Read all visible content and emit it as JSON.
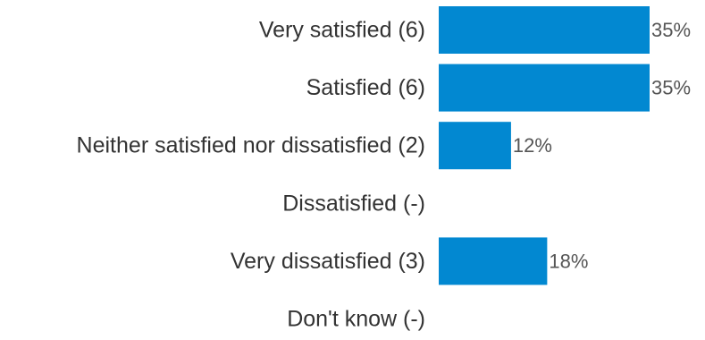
{
  "chart_data": {
    "type": "bar",
    "orientation": "horizontal",
    "categories": [
      "Very satisfied (6)",
      "Satisfied (6)",
      "Neither satisfied nor dissatisfied (2)",
      "Dissatisfied (-)",
      "Very dissatisfied (3)",
      "Don't know (-)"
    ],
    "values": [
      35,
      35,
      12,
      0,
      18,
      0
    ],
    "value_labels": [
      "35%",
      "35%",
      "12%",
      "",
      "18%",
      ""
    ],
    "xlim": [
      0,
      35
    ],
    "bar_color": "#0288d1",
    "grid": false,
    "legend": "none"
  }
}
